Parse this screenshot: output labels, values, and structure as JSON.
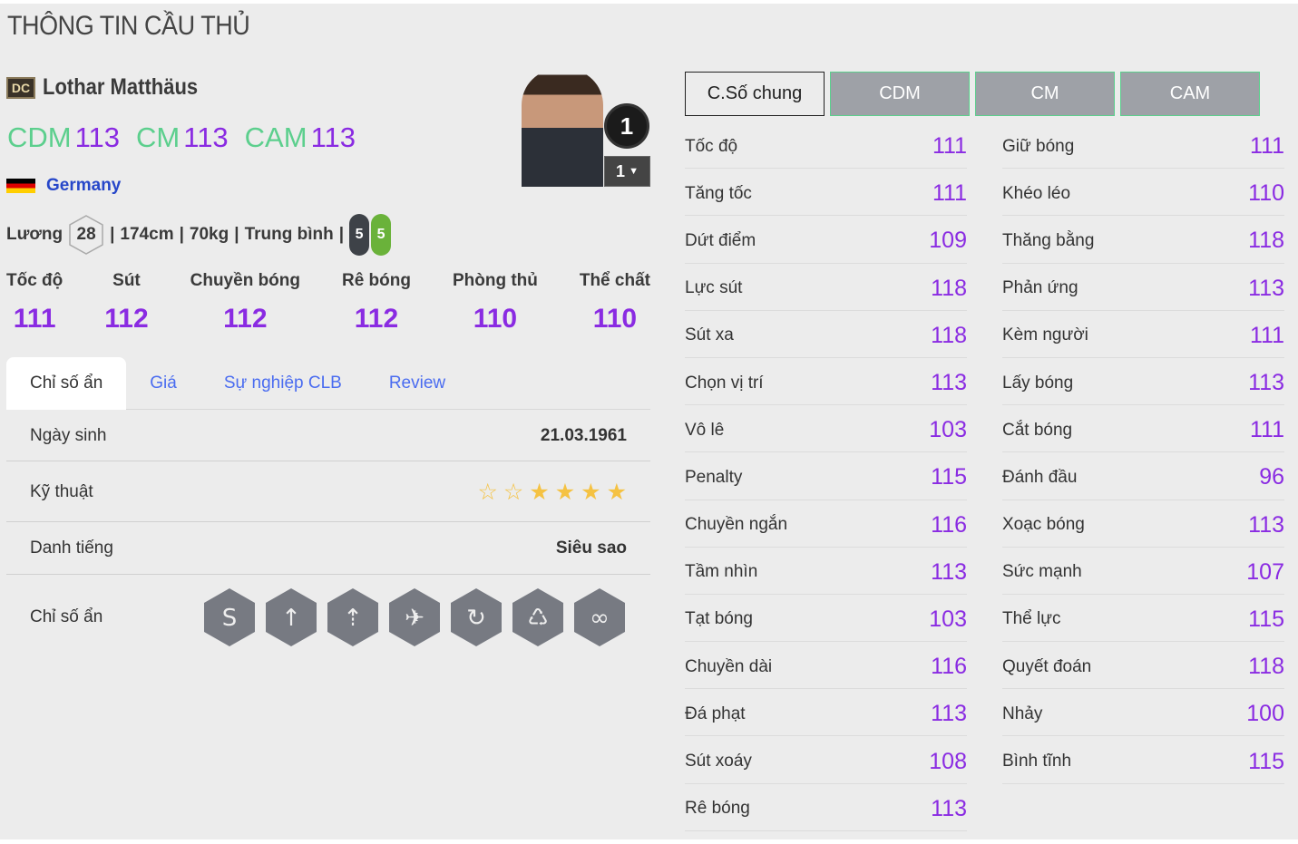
{
  "page_title": "THÔNG TIN CẦU THỦ",
  "player": {
    "season_badge": "DC",
    "name": "Lothar Matthäus",
    "positions": [
      {
        "pos": "CDM",
        "ovr": "113"
      },
      {
        "pos": "CM",
        "ovr": "113"
      },
      {
        "pos": "CAM",
        "ovr": "113"
      }
    ],
    "nation": "Germany",
    "salary_label": "Lương",
    "salary": "28",
    "height": "174cm",
    "weight": "70kg",
    "body": "Trung bình",
    "left_foot": "5",
    "right_foot": "5",
    "rank": "1",
    "level": "1"
  },
  "main_stats": [
    {
      "label": "Tốc độ",
      "value": "111"
    },
    {
      "label": "Sút",
      "value": "112"
    },
    {
      "label": "Chuyền bóng",
      "value": "112"
    },
    {
      "label": "Rê bóng",
      "value": "112"
    },
    {
      "label": "Phòng thủ",
      "value": "110"
    },
    {
      "label": "Thể chất",
      "value": "110"
    }
  ],
  "tabs": [
    "Chỉ số ẩn",
    "Giá",
    "Sự nghiệp CLB",
    "Review"
  ],
  "details": {
    "birth_label": "Ngày sinh",
    "birth": "21.03.1961",
    "skill_label": "Kỹ thuật",
    "skill_stars": 4,
    "skill_max": 6,
    "fame_label": "Danh tiếng",
    "fame": "Siêu sao",
    "traits_label": "Chỉ số ẩn",
    "traits": [
      "snake-trait-icon",
      "long-shot-trait-icon",
      "power-header-trait-icon",
      "finesse-shot-trait-icon",
      "curl-pass-trait-icon",
      "lungs-stamina-trait-icon",
      "dribbler-trait-icon"
    ]
  },
  "stat_tabs": [
    "C.Số chung",
    "CDM",
    "CM",
    "CAM"
  ],
  "stats_left": [
    [
      "Tốc độ",
      "111"
    ],
    [
      "Tăng tốc",
      "111"
    ],
    [
      "Dứt điểm",
      "109"
    ],
    [
      "Lực sút",
      "118"
    ],
    [
      "Sút xa",
      "118"
    ],
    [
      "Chọn vị trí",
      "113"
    ],
    [
      "Vô lê",
      "103"
    ],
    [
      "Penalty",
      "115"
    ],
    [
      "Chuyền ngắn",
      "116"
    ],
    [
      "Tầm nhìn",
      "113"
    ],
    [
      "Tạt bóng",
      "103"
    ],
    [
      "Chuyền dài",
      "116"
    ],
    [
      "Đá phạt",
      "113"
    ],
    [
      "Sút xoáy",
      "108"
    ],
    [
      "Rê bóng",
      "113"
    ]
  ],
  "stats_right": [
    [
      "Giữ bóng",
      "111"
    ],
    [
      "Khéo léo",
      "110"
    ],
    [
      "Thăng bằng",
      "118"
    ],
    [
      "Phản ứng",
      "113"
    ],
    [
      "Kèm người",
      "111"
    ],
    [
      "Lấy bóng",
      "113"
    ],
    [
      "Cắt bóng",
      "111"
    ],
    [
      "Đánh đầu",
      "96"
    ],
    [
      "Xoạc bóng",
      "113"
    ],
    [
      "Sức mạnh",
      "107"
    ],
    [
      "Thể lực",
      "115"
    ],
    [
      "Quyết đoán",
      "118"
    ],
    [
      "Nhảy",
      "100"
    ],
    [
      "Bình tĩnh",
      "115"
    ]
  ],
  "colors": {
    "position": "#5ccf8d",
    "rating": "#8a2be2",
    "link": "#4a6cf0",
    "star": "#f5c242"
  }
}
